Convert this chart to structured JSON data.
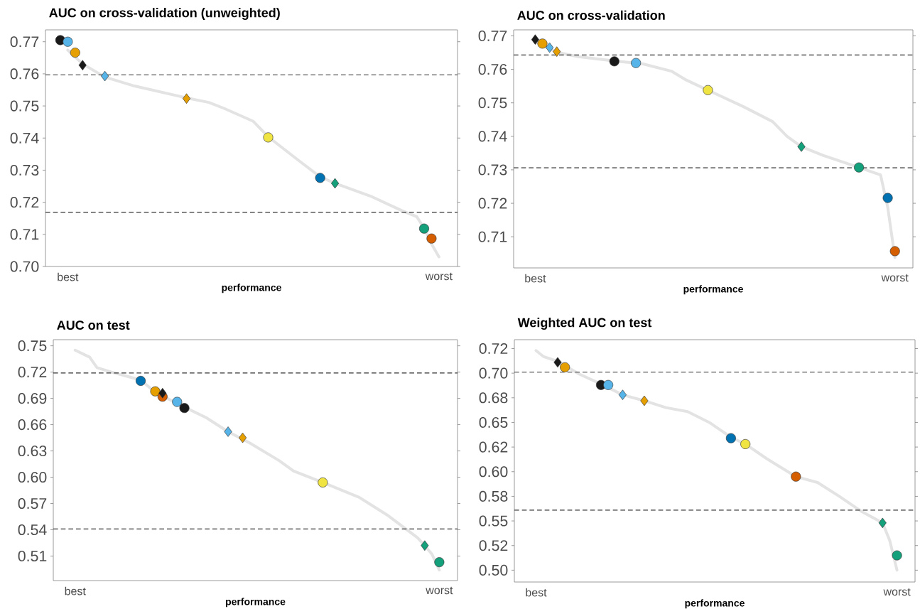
{
  "chart_data": [
    {
      "type": "scatter",
      "title": "AUC on cross-validation (unweighted)",
      "xlabel": "performance",
      "ylim": [
        0.7,
        0.7737
      ],
      "categories": [
        null,
        "best",
        null,
        null,
        null,
        null,
        null,
        null,
        null,
        null,
        null,
        null,
        null,
        null,
        null,
        null,
        null,
        null,
        null,
        null,
        null,
        null,
        null,
        null,
        null,
        null,
        null,
        null,
        null,
        null,
        null,
        null,
        null,
        null,
        null,
        null,
        null,
        null,
        null,
        null,
        null,
        null,
        null,
        null,
        null,
        null,
        null,
        null,
        null,
        null,
        null,
        "worst",
        null
      ],
      "yticks": [
        {
          "value": 0.7,
          "label": "0.70"
        },
        {
          "value": 0.71,
          "label": "0.71"
        },
        {
          "value": 0.72,
          "label": "0.72"
        },
        {
          "value": 0.73,
          "label": "0.73"
        },
        {
          "value": 0.74,
          "label": "0.74"
        },
        {
          "value": 0.75,
          "label": "0.75"
        },
        {
          "value": 0.76,
          "label": "0.76"
        },
        {
          "value": 0.77,
          "label": "0.77"
        }
      ],
      "ref_lines": [
        {
          "axis": "y",
          "value": 0.7597,
          "color": "#333333",
          "line_style": "dashed"
        },
        {
          "axis": "y",
          "value": 0.7169,
          "color": "#333333",
          "line_style": "dashed"
        }
      ],
      "series": [
        {
          "type": "line",
          "color": "#e3e3e3",
          "values": [
            null,
            0.7674,
            null,
            0.7631,
            null,
            null,
            0.759,
            null,
            null,
            null,
            0.7562,
            null,
            null,
            null,
            null,
            null,
            null,
            0.7525,
            null,
            null,
            0.7511,
            null,
            0.7493,
            null,
            null,
            null,
            0.7452,
            null,
            0.7404,
            null,
            null,
            null,
            0.7332,
            null,
            null,
            0.7279,
            null,
            0.7259,
            null,
            null,
            null,
            null,
            0.7217,
            null,
            null,
            null,
            0.7174,
            null,
            0.7155,
            0.712,
            0.707,
            0.703,
            null
          ]
        },
        {
          "marker": "circle",
          "values": [
            0.7705,
            0.77,
            0.7666,
            null,
            null,
            null,
            null,
            null,
            null,
            null,
            null,
            null,
            null,
            null,
            null,
            null,
            null,
            null,
            null,
            null,
            null,
            null,
            null,
            null,
            null,
            null,
            null,
            null,
            0.7402,
            null,
            null,
            null,
            null,
            null,
            null,
            0.7276,
            null,
            null,
            null,
            null,
            null,
            null,
            null,
            null,
            null,
            null,
            null,
            null,
            null,
            0.7118,
            0.7087,
            null,
            null
          ],
          "colors": [
            "#1a1a1a",
            "#56b4e9",
            "#e69f00",
            null,
            null,
            null,
            null,
            null,
            null,
            null,
            null,
            null,
            null,
            null,
            null,
            null,
            null,
            null,
            null,
            null,
            null,
            null,
            null,
            null,
            null,
            null,
            null,
            null,
            "#f0e442",
            null,
            null,
            null,
            null,
            null,
            null,
            "#0072b2",
            null,
            null,
            null,
            null,
            null,
            null,
            null,
            null,
            null,
            null,
            null,
            null,
            null,
            "#13a07a",
            "#d55e00",
            null,
            null
          ]
        },
        {
          "marker": "diamond",
          "values": [
            null,
            null,
            null,
            0.7627,
            null,
            null,
            0.7593,
            null,
            null,
            null,
            null,
            null,
            null,
            null,
            null,
            null,
            null,
            0.7523,
            null,
            null,
            null,
            null,
            null,
            null,
            null,
            null,
            null,
            null,
            null,
            null,
            null,
            null,
            null,
            null,
            null,
            null,
            null,
            0.7259,
            null,
            null,
            null,
            null,
            null,
            null,
            null,
            null,
            null,
            null,
            null,
            null,
            null,
            null,
            null
          ],
          "colors": [
            null,
            null,
            null,
            "#1a1a1a",
            null,
            null,
            "#56b4e9",
            null,
            null,
            null,
            null,
            null,
            null,
            null,
            null,
            null,
            null,
            "#e69f00",
            null,
            null,
            null,
            null,
            null,
            null,
            null,
            null,
            null,
            null,
            null,
            null,
            null,
            null,
            null,
            null,
            null,
            null,
            null,
            "#13a07a",
            null,
            null,
            null,
            null,
            null,
            null,
            null,
            null,
            null,
            null,
            null,
            null,
            null,
            null,
            null
          ]
        }
      ]
    },
    {
      "type": "scatter",
      "title": "AUC on cross-validation",
      "xlabel": "performance",
      "ylim": [
        0.7007,
        0.7718
      ],
      "categories": [
        null,
        "best",
        null,
        null,
        null,
        null,
        null,
        null,
        null,
        null,
        null,
        null,
        null,
        null,
        null,
        null,
        null,
        null,
        null,
        null,
        null,
        null,
        null,
        null,
        null,
        null,
        null,
        null,
        null,
        null,
        null,
        null,
        null,
        null,
        null,
        null,
        null,
        null,
        null,
        null,
        null,
        null,
        null,
        null,
        null,
        null,
        null,
        null,
        null,
        null,
        null,
        "worst",
        null
      ],
      "yticks": [
        {
          "value": 0.71,
          "label": "0.71"
        },
        {
          "value": 0.72,
          "label": "0.72"
        },
        {
          "value": 0.73,
          "label": "0.73"
        },
        {
          "value": 0.74,
          "label": "0.74"
        },
        {
          "value": 0.75,
          "label": "0.75"
        },
        {
          "value": 0.76,
          "label": "0.76"
        },
        {
          "value": 0.77,
          "label": "0.77"
        }
      ],
      "ref_lines": [
        {
          "axis": "y",
          "value": 0.7643,
          "color": "#333333",
          "line_style": "dashed"
        },
        {
          "axis": "y",
          "value": 0.7306,
          "color": "#333333",
          "line_style": "dashed"
        }
      ],
      "series": [
        {
          "type": "line",
          "color": "#e3e3e3",
          "values": [
            null,
            0.7682,
            null,
            null,
            0.7651,
            null,
            null,
            0.7638,
            null,
            null,
            null,
            null,
            0.7625,
            null,
            null,
            null,
            0.7616,
            null,
            null,
            null,
            0.7594,
            null,
            0.7568,
            null,
            null,
            0.7538,
            null,
            null,
            null,
            null,
            0.7488,
            null,
            null,
            null,
            0.7444,
            null,
            0.74,
            null,
            0.7369,
            null,
            null,
            0.7343,
            null,
            null,
            null,
            null,
            0.7307,
            null,
            null,
            0.7285,
            0.7188,
            0.7038,
            null
          ]
        },
        {
          "marker": "circle",
          "values": [
            null,
            null,
            0.7677,
            null,
            null,
            null,
            null,
            null,
            null,
            null,
            null,
            null,
            0.7624,
            null,
            null,
            0.7619,
            null,
            null,
            null,
            null,
            null,
            null,
            null,
            null,
            null,
            0.7538,
            null,
            null,
            null,
            null,
            null,
            null,
            null,
            null,
            null,
            null,
            null,
            null,
            null,
            null,
            null,
            null,
            null,
            null,
            null,
            null,
            0.7307,
            null,
            null,
            null,
            0.7216,
            0.7057,
            null
          ],
          "colors": [
            null,
            null,
            "#e69f00",
            null,
            null,
            null,
            null,
            null,
            null,
            null,
            null,
            null,
            "#1a1a1a",
            null,
            null,
            "#56b4e9",
            null,
            null,
            null,
            null,
            null,
            null,
            null,
            null,
            null,
            "#f0e442",
            null,
            null,
            null,
            null,
            null,
            null,
            null,
            null,
            null,
            null,
            null,
            null,
            null,
            null,
            null,
            null,
            null,
            null,
            null,
            null,
            "#13a07a",
            null,
            null,
            null,
            "#0072b2",
            "#d55e00",
            null
          ]
        },
        {
          "marker": "diamond",
          "values": [
            null,
            0.7689,
            null,
            0.7665,
            0.7653,
            null,
            null,
            null,
            null,
            null,
            null,
            null,
            null,
            null,
            null,
            null,
            null,
            null,
            null,
            null,
            null,
            null,
            null,
            null,
            null,
            null,
            null,
            null,
            null,
            null,
            null,
            null,
            null,
            null,
            null,
            null,
            null,
            null,
            0.7369,
            null,
            null,
            null,
            null,
            null,
            null,
            null,
            null,
            null,
            null,
            null,
            null,
            null,
            null
          ],
          "colors": [
            null,
            "#1a1a1a",
            null,
            "#56b4e9",
            "#e69f00",
            null,
            null,
            null,
            null,
            null,
            null,
            null,
            null,
            null,
            null,
            null,
            null,
            null,
            null,
            null,
            null,
            null,
            null,
            null,
            null,
            null,
            null,
            null,
            null,
            null,
            null,
            null,
            null,
            null,
            null,
            null,
            null,
            null,
            "#13a07a",
            null,
            null,
            null,
            null,
            null,
            null,
            null,
            null,
            null,
            null,
            null,
            null,
            null,
            null
          ]
        }
      ]
    },
    {
      "type": "scatter",
      "title": "AUC on test",
      "xlabel": "performance",
      "ylim": [
        0.482,
        0.757
      ],
      "categories": [
        null,
        "best",
        null,
        null,
        null,
        null,
        null,
        null,
        null,
        null,
        null,
        null,
        null,
        null,
        null,
        null,
        null,
        null,
        null,
        null,
        null,
        null,
        null,
        null,
        null,
        null,
        null,
        null,
        null,
        null,
        null,
        null,
        null,
        null,
        null,
        null,
        null,
        null,
        null,
        null,
        null,
        null,
        null,
        null,
        null,
        null,
        null,
        null,
        null,
        null,
        null,
        "worst",
        null
      ],
      "yticks": [
        {
          "value": 0.51,
          "label": "0.51"
        },
        {
          "value": 0.54,
          "label": "0.54"
        },
        {
          "value": 0.57,
          "label": "0.57"
        },
        {
          "value": 0.6,
          "label": "0.60"
        },
        {
          "value": 0.63,
          "label": "0.63"
        },
        {
          "value": 0.66,
          "label": "0.66"
        },
        {
          "value": 0.69,
          "label": "0.69"
        },
        {
          "value": 0.72,
          "label": "0.72"
        },
        {
          "value": 0.75,
          "label": "0.75"
        }
      ],
      "ref_lines": [
        {
          "axis": "y",
          "value": 0.719,
          "color": "#333333",
          "line_style": "dashed"
        },
        {
          "axis": "y",
          "value": 0.541,
          "color": "#333333",
          "line_style": "dashed"
        }
      ],
      "series": [
        {
          "type": "line",
          "color": "#e3e3e3",
          "values": [
            null,
            0.745,
            null,
            0.737,
            0.725,
            null,
            0.72,
            null,
            null,
            null,
            0.711,
            null,
            0.697,
            null,
            null,
            null,
            0.68,
            null,
            null,
            0.668,
            null,
            null,
            0.652,
            null,
            null,
            0.639,
            null,
            null,
            null,
            0.619,
            null,
            0.607,
            null,
            null,
            null,
            0.594,
            null,
            null,
            null,
            null,
            0.577,
            null,
            null,
            null,
            0.556,
            null,
            null,
            null,
            0.531,
            0.522,
            0.512,
            0.494,
            null
          ]
        },
        {
          "marker": "circle",
          "values": [
            null,
            null,
            null,
            null,
            null,
            null,
            null,
            null,
            null,
            null,
            0.71,
            null,
            0.698,
            0.692,
            null,
            0.686,
            0.679,
            null,
            null,
            null,
            null,
            null,
            null,
            null,
            null,
            null,
            null,
            null,
            null,
            null,
            null,
            null,
            null,
            null,
            null,
            0.594,
            null,
            null,
            null,
            null,
            null,
            null,
            null,
            null,
            null,
            null,
            null,
            null,
            null,
            null,
            null,
            0.503,
            null
          ],
          "colors": [
            null,
            null,
            null,
            null,
            null,
            null,
            null,
            null,
            null,
            null,
            "#0072b2",
            null,
            "#e69f00",
            "#d55e00",
            null,
            "#56b4e9",
            "#1a1a1a",
            null,
            null,
            null,
            null,
            null,
            null,
            null,
            null,
            null,
            null,
            null,
            null,
            null,
            null,
            null,
            null,
            null,
            null,
            "#f0e442",
            null,
            null,
            null,
            null,
            null,
            null,
            null,
            null,
            null,
            null,
            null,
            null,
            null,
            null,
            null,
            "#13a07a",
            null
          ]
        },
        {
          "marker": "diamond",
          "values": [
            null,
            null,
            null,
            null,
            null,
            null,
            null,
            null,
            null,
            null,
            null,
            null,
            null,
            0.696,
            null,
            null,
            null,
            null,
            null,
            null,
            null,
            null,
            0.652,
            null,
            0.645,
            null,
            null,
            null,
            null,
            null,
            null,
            null,
            null,
            null,
            null,
            null,
            null,
            null,
            null,
            null,
            null,
            null,
            null,
            null,
            null,
            null,
            null,
            null,
            null,
            0.522,
            null,
            null,
            null
          ],
          "colors": [
            null,
            null,
            null,
            null,
            null,
            null,
            null,
            null,
            null,
            null,
            null,
            null,
            null,
            "#1a1a1a",
            null,
            null,
            null,
            null,
            null,
            null,
            null,
            null,
            "#56b4e9",
            null,
            "#e69f00",
            null,
            null,
            null,
            null,
            null,
            null,
            null,
            null,
            null,
            null,
            null,
            null,
            null,
            null,
            null,
            null,
            null,
            null,
            null,
            null,
            null,
            null,
            null,
            null,
            "#13a07a",
            null,
            null,
            null
          ]
        }
      ]
    },
    {
      "type": "scatter",
      "title": "Weighted AUC on test",
      "xlabel": "performance",
      "ylim": [
        0.488,
        0.734
      ],
      "categories": [
        null,
        "best",
        null,
        null,
        null,
        null,
        null,
        null,
        null,
        null,
        null,
        null,
        null,
        null,
        null,
        null,
        null,
        null,
        null,
        null,
        null,
        null,
        null,
        null,
        null,
        null,
        null,
        null,
        null,
        null,
        null,
        null,
        null,
        null,
        null,
        null,
        null,
        null,
        null,
        null,
        null,
        null,
        null,
        null,
        null,
        null,
        null,
        null,
        null,
        null,
        null,
        "worst",
        null
      ],
      "yticks": [
        {
          "value": 0.5,
          "label": "0.50"
        },
        {
          "value": 0.525,
          "label": "0.52"
        },
        {
          "value": 0.55,
          "label": "0.55"
        },
        {
          "value": 0.575,
          "label": "0.58"
        },
        {
          "value": 0.6,
          "label": "0.60"
        },
        {
          "value": 0.625,
          "label": "0.62"
        },
        {
          "value": 0.65,
          "label": "0.65"
        },
        {
          "value": 0.675,
          "label": "0.68"
        },
        {
          "value": 0.7,
          "label": "0.70"
        },
        {
          "value": 0.725,
          "label": "0.72"
        }
      ],
      "ref_lines": [
        {
          "axis": "y",
          "value": 0.701,
          "color": "#333333",
          "line_style": "dashed"
        },
        {
          "axis": "y",
          "value": 0.561,
          "color": "#333333",
          "line_style": "dashed"
        }
      ],
      "series": [
        {
          "type": "line",
          "color": "#e3e3e3",
          "values": [
            null,
            0.723,
            0.717,
            null,
            0.712,
            null,
            null,
            0.699,
            null,
            null,
            0.689,
            null,
            null,
            0.678,
            null,
            null,
            0.672,
            null,
            null,
            0.665,
            null,
            null,
            0.661,
            null,
            null,
            0.65,
            null,
            null,
            0.635,
            null,
            0.628,
            null,
            null,
            0.613,
            null,
            null,
            null,
            0.595,
            null,
            null,
            0.589,
            null,
            null,
            0.575,
            null,
            null,
            0.56,
            null,
            null,
            0.548,
            0.53,
            0.5,
            null
          ]
        },
        {
          "marker": "circle",
          "values": [
            null,
            null,
            null,
            null,
            null,
            0.706,
            null,
            null,
            null,
            null,
            0.688,
            0.688,
            null,
            null,
            null,
            null,
            null,
            null,
            null,
            null,
            null,
            null,
            null,
            null,
            null,
            null,
            null,
            null,
            0.634,
            null,
            0.628,
            null,
            null,
            null,
            null,
            null,
            null,
            0.595,
            null,
            null,
            null,
            null,
            null,
            null,
            null,
            null,
            null,
            null,
            null,
            null,
            null,
            0.515,
            null
          ],
          "colors": [
            null,
            null,
            null,
            null,
            null,
            "#e69f00",
            null,
            null,
            null,
            null,
            "#1a1a1a",
            "#56b4e9",
            null,
            null,
            null,
            null,
            null,
            null,
            null,
            null,
            null,
            null,
            null,
            null,
            null,
            null,
            null,
            null,
            "#0072b2",
            null,
            "#f0e442",
            null,
            null,
            null,
            null,
            null,
            null,
            "#d55e00",
            null,
            null,
            null,
            null,
            null,
            null,
            null,
            null,
            null,
            null,
            null,
            null,
            null,
            "#13a07a",
            null
          ]
        },
        {
          "marker": "diamond",
          "values": [
            null,
            null,
            null,
            null,
            0.711,
            null,
            null,
            null,
            null,
            null,
            null,
            null,
            null,
            0.678,
            null,
            null,
            0.672,
            null,
            null,
            null,
            null,
            null,
            null,
            null,
            null,
            null,
            null,
            null,
            null,
            null,
            null,
            null,
            null,
            null,
            null,
            null,
            null,
            null,
            null,
            null,
            null,
            null,
            null,
            null,
            null,
            null,
            null,
            null,
            null,
            0.548,
            null,
            null,
            null
          ],
          "colors": [
            null,
            null,
            null,
            null,
            "#1a1a1a",
            null,
            null,
            null,
            null,
            null,
            null,
            null,
            null,
            "#56b4e9",
            null,
            null,
            "#e69f00",
            null,
            null,
            null,
            null,
            null,
            null,
            null,
            null,
            null,
            null,
            null,
            null,
            null,
            null,
            null,
            null,
            null,
            null,
            null,
            null,
            null,
            null,
            null,
            null,
            null,
            null,
            null,
            null,
            null,
            null,
            null,
            null,
            "#13a07a",
            null,
            null,
            null
          ]
        }
      ]
    }
  ]
}
